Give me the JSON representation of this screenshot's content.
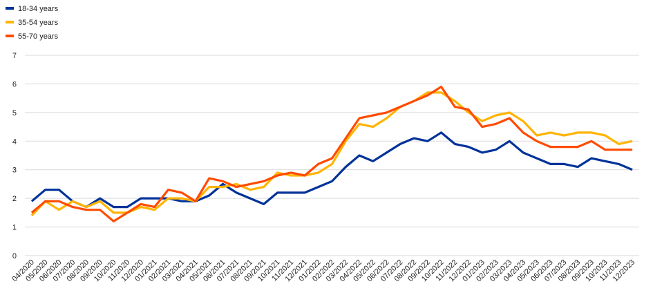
{
  "chart_data": {
    "type": "line",
    "categories": [
      "04/2020",
      "05/2020",
      "06/2020",
      "07/2020",
      "08/2020",
      "09/2020",
      "10/2020",
      "11/2020",
      "12/2020",
      "01/2021",
      "02/2021",
      "03/2021",
      "04/2021",
      "05/2021",
      "06/2021",
      "07/2021",
      "08/2021",
      "09/2021",
      "10/2021",
      "11/2021",
      "12/2021",
      "01/2022",
      "02/2022",
      "03/2022",
      "04/2022",
      "05/2022",
      "06/2022",
      "07/2022",
      "08/2022",
      "09/2022",
      "10/2022",
      "11/2022",
      "12/2022",
      "01/2023",
      "02/2023",
      "03/2023",
      "04/2023",
      "05/2023",
      "06/2023",
      "07/2023",
      "08/2023",
      "09/2023",
      "10/2023",
      "11/2023",
      "12/2023"
    ],
    "series": [
      {
        "name": "18-34 years",
        "color": "#003299",
        "values": [
          1.9,
          2.3,
          2.3,
          1.9,
          1.7,
          2.0,
          1.7,
          1.7,
          2.0,
          2.0,
          2.0,
          1.9,
          1.9,
          2.1,
          2.5,
          2.2,
          2.0,
          1.8,
          2.2,
          2.2,
          2.2,
          2.4,
          2.6,
          3.1,
          3.5,
          3.3,
          3.6,
          3.9,
          4.1,
          4.0,
          4.3,
          3.9,
          3.8,
          3.6,
          3.7,
          4.0,
          3.6,
          3.4,
          3.2,
          3.2,
          3.1,
          3.4,
          3.3,
          3.2,
          3.0
        ]
      },
      {
        "name": "35-54 years",
        "color": "#ffb400",
        "values": [
          1.4,
          1.9,
          1.6,
          1.9,
          1.7,
          1.9,
          1.5,
          1.5,
          1.7,
          1.6,
          2.0,
          2.0,
          1.9,
          2.4,
          2.4,
          2.5,
          2.3,
          2.4,
          2.9,
          2.8,
          2.8,
          2.9,
          3.2,
          4.0,
          4.6,
          4.5,
          4.8,
          5.2,
          5.4,
          5.7,
          5.7,
          5.4,
          5.0,
          4.7,
          4.9,
          5.0,
          4.7,
          4.2,
          4.3,
          4.2,
          4.3,
          4.3,
          4.2,
          3.9,
          4.0
        ]
      },
      {
        "name": "55-70 years",
        "color": "#ff4b00",
        "values": [
          1.5,
          1.9,
          1.9,
          1.7,
          1.6,
          1.6,
          1.2,
          1.5,
          1.8,
          1.7,
          2.3,
          2.2,
          1.9,
          2.7,
          2.6,
          2.4,
          2.5,
          2.6,
          2.8,
          2.9,
          2.8,
          3.2,
          3.4,
          4.1,
          4.8,
          4.9,
          5.0,
          5.2,
          5.4,
          5.6,
          5.9,
          5.2,
          5.1,
          4.5,
          4.6,
          4.8,
          4.3,
          4.0,
          3.8,
          3.8,
          3.8,
          4.0,
          3.7,
          3.7,
          3.7
        ]
      }
    ],
    "ylim": [
      0,
      7
    ],
    "yticks": [
      0,
      1,
      2,
      3,
      4,
      5,
      6,
      7
    ],
    "grid": true
  }
}
